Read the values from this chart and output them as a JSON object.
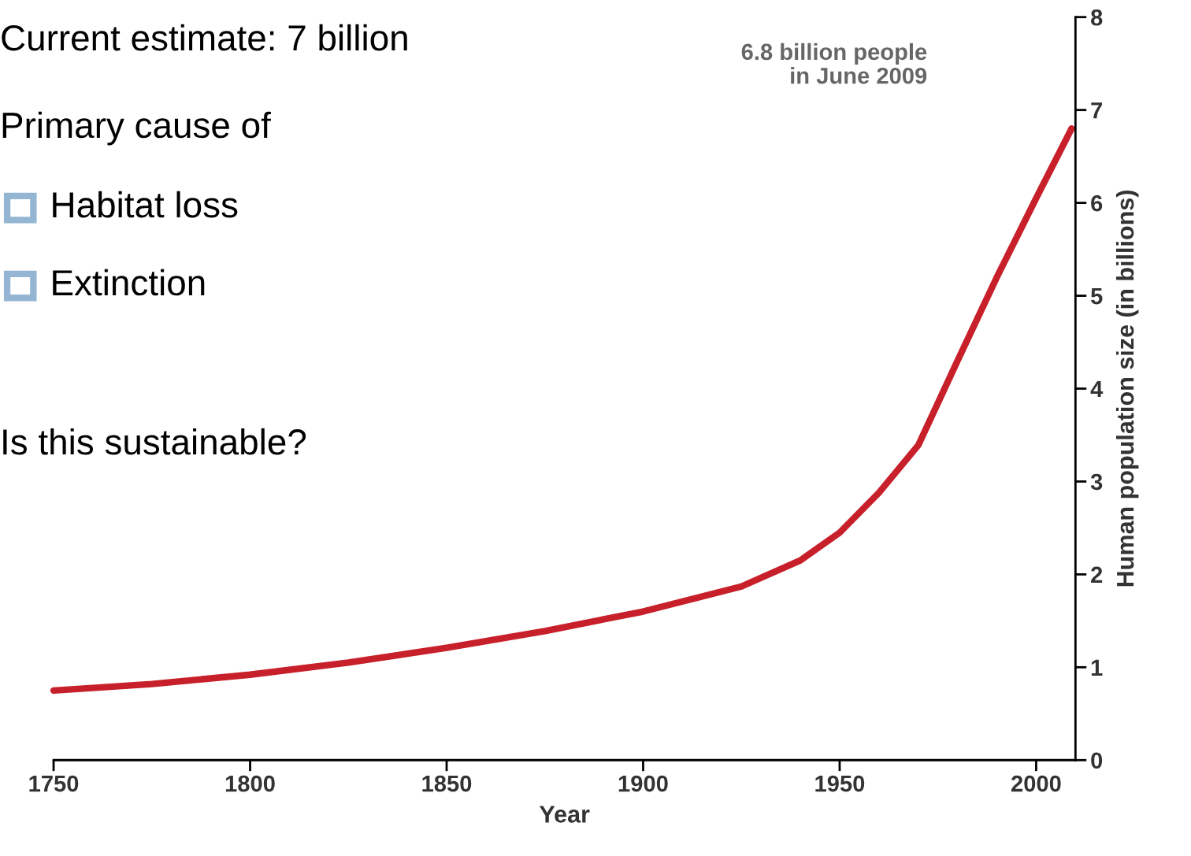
{
  "chart_data": {
    "type": "line",
    "xlabel": "Year",
    "ylabel": "Human population size (in billions)",
    "series": [
      {
        "color": "#c8202a",
        "x": [
          1750,
          1775,
          1800,
          1825,
          1850,
          1875,
          1900,
          1925,
          1940,
          1950,
          1960,
          1970,
          1980,
          1990,
          2000,
          2009
        ],
        "values": [
          0.75,
          0.82,
          0.92,
          1.05,
          1.21,
          1.39,
          1.6,
          1.87,
          2.15,
          2.45,
          2.88,
          3.39,
          4.3,
          5.2,
          6.05,
          6.8
        ]
      }
    ],
    "xlim": [
      1750,
      2010
    ],
    "xticks": [
      1750,
      1800,
      1850,
      1900,
      1950,
      2000
    ],
    "ylim": [
      0,
      8
    ],
    "yticks": [
      0,
      1,
      2,
      3,
      4,
      5,
      6,
      7,
      8
    ],
    "grid": false,
    "legend": false,
    "marker": "none",
    "line_style": "solid",
    "annotations": [
      "Current estimate: 7 billion",
      "Primary cause of",
      "Habitat loss",
      "Extinction",
      "Is this sustainable?",
      "6.8 billion people\nin June 2009"
    ]
  }
}
